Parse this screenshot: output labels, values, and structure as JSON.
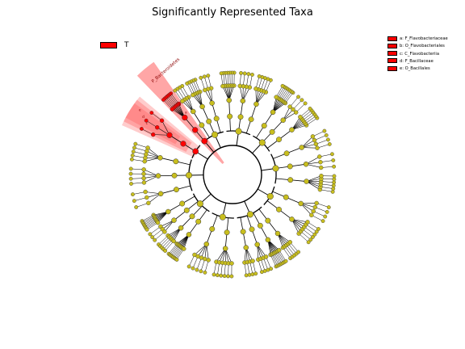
{
  "title": "Significantly Represented Taxa",
  "legend": {
    "group_label": "T",
    "group_color": "#ff0000"
  },
  "clade_legend": [
    {
      "key": "a",
      "label": "a: F_Flavobacteriaceae"
    },
    {
      "key": "b",
      "label": "b: O_Flavobacteriales"
    },
    {
      "key": "c",
      "label": "c: C_Flavobacteriia"
    },
    {
      "key": "d",
      "label": "d: F_Bacillaceae"
    },
    {
      "key": "e",
      "label": "e: O_Bacillales"
    }
  ],
  "highlight_label": "P_Bacteroidetes",
  "sector_letters": [
    "a",
    "b",
    "c",
    "d",
    "e"
  ],
  "colors": {
    "node": "#c8be1e",
    "highlight": "#ff0000",
    "edge": "#000000"
  }
}
